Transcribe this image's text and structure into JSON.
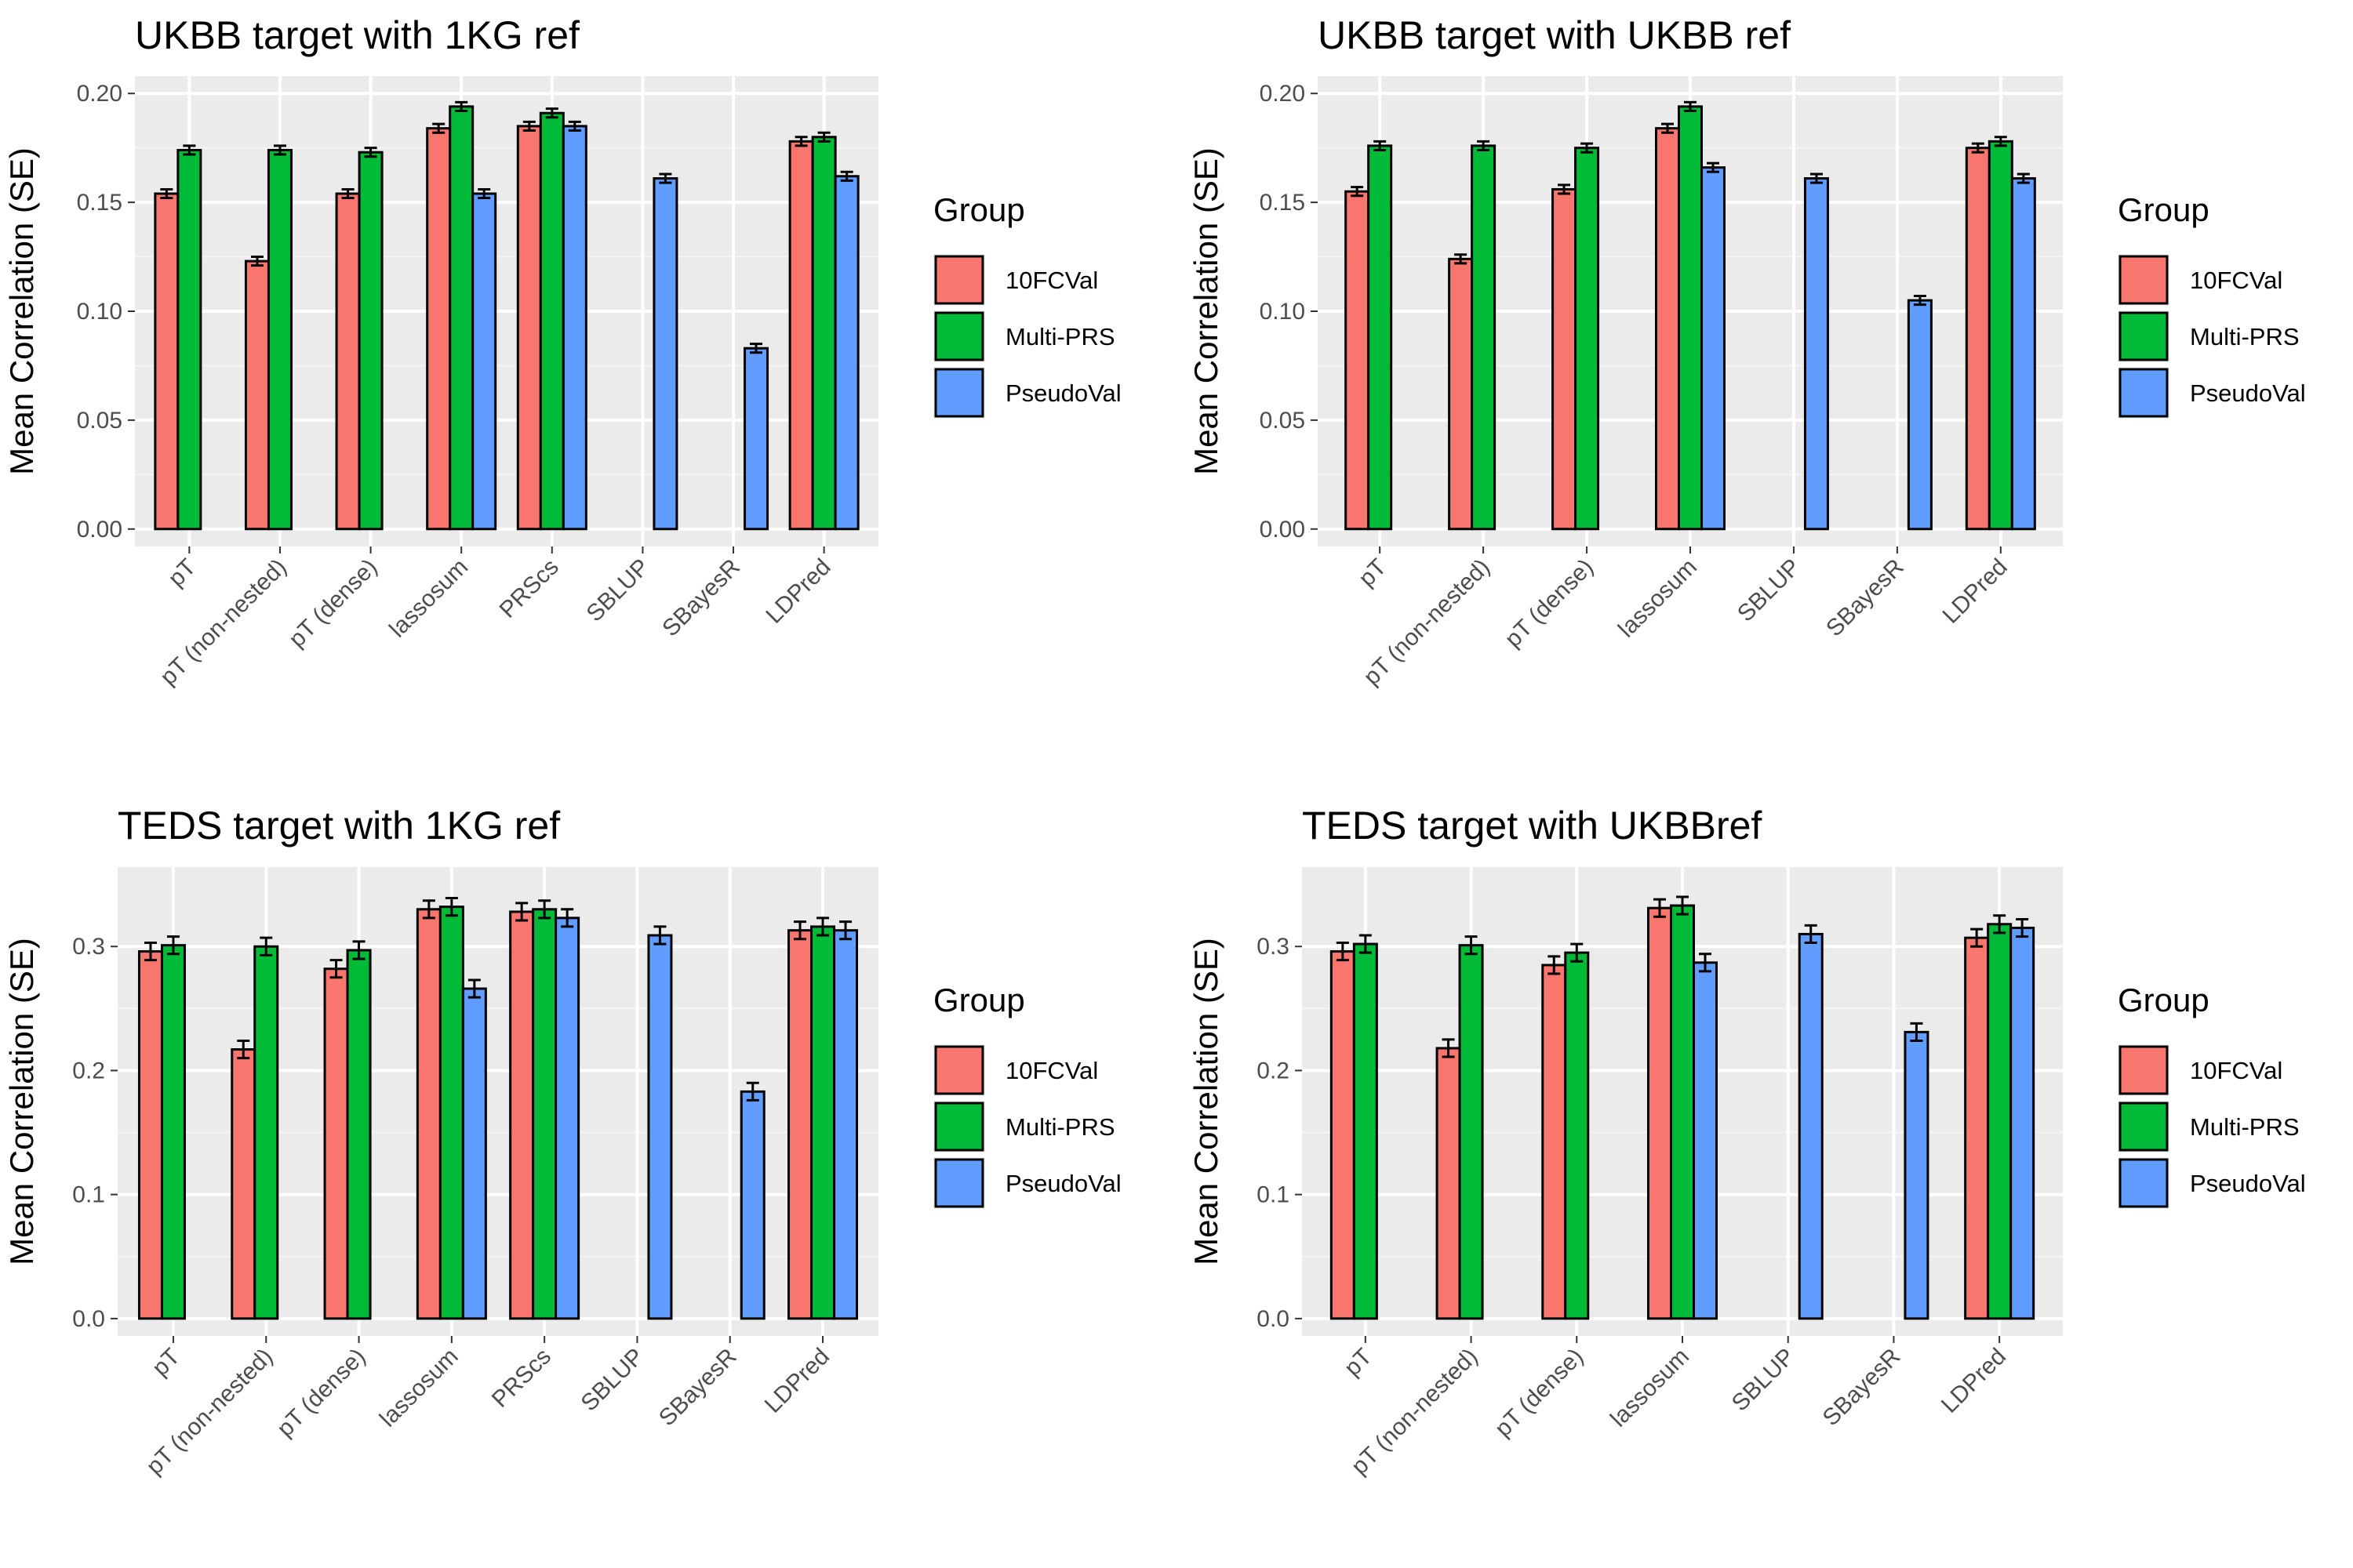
{
  "legend": {
    "title": "Group",
    "items": [
      {
        "label": "10FCVal",
        "color": "#F8766D"
      },
      {
        "label": "Multi-PRS",
        "color": "#00BA38"
      },
      {
        "label": "PseudoVal",
        "color": "#619CFF"
      }
    ]
  },
  "chart_data": [
    {
      "type": "bar",
      "title": "UKBB target with 1KG ref",
      "ylabel": "Mean Correlation (SE)",
      "ylim": [
        0,
        0.2
      ],
      "yticks": [
        0.0,
        0.05,
        0.1,
        0.15,
        0.2
      ],
      "ytick_labels": [
        "0.00",
        "0.05",
        "0.10",
        "0.15",
        "0.20"
      ],
      "categories": [
        "pT",
        "pT (non-nested)",
        "pT (dense)",
        "lassosum",
        "PRScs",
        "SBLUP",
        "SBayesR",
        "LDPred"
      ],
      "grid": true,
      "legend_position": "right",
      "series": [
        {
          "name": "10FCVal",
          "values": [
            0.154,
            0.123,
            0.154,
            0.184,
            0.185,
            null,
            null,
            0.178
          ],
          "se": [
            0.002,
            0.002,
            0.002,
            0.002,
            0.002,
            null,
            null,
            0.002
          ]
        },
        {
          "name": "Multi-PRS",
          "values": [
            0.174,
            0.174,
            0.173,
            0.194,
            0.191,
            null,
            null,
            0.18
          ],
          "se": [
            0.002,
            0.002,
            0.002,
            0.002,
            0.002,
            null,
            null,
            0.002
          ]
        },
        {
          "name": "PseudoVal",
          "values": [
            null,
            null,
            null,
            0.154,
            0.185,
            0.161,
            0.083,
            0.162
          ],
          "se": [
            null,
            null,
            null,
            0.002,
            0.002,
            0.002,
            0.002,
            0.002
          ]
        }
      ]
    },
    {
      "type": "bar",
      "title": "UKBB target with UKBB ref",
      "ylabel": "Mean Correlation (SE)",
      "ylim": [
        0,
        0.2
      ],
      "yticks": [
        0.0,
        0.05,
        0.1,
        0.15,
        0.2
      ],
      "ytick_labels": [
        "0.00",
        "0.05",
        "0.10",
        "0.15",
        "0.20"
      ],
      "categories": [
        "pT",
        "pT (non-nested)",
        "pT (dense)",
        "lassosum",
        "SBLUP",
        "SBayesR",
        "LDPred"
      ],
      "grid": true,
      "legend_position": "right",
      "series": [
        {
          "name": "10FCVal",
          "values": [
            0.155,
            0.124,
            0.156,
            0.184,
            null,
            null,
            0.175
          ],
          "se": [
            0.002,
            0.002,
            0.002,
            0.002,
            null,
            null,
            0.002
          ]
        },
        {
          "name": "Multi-PRS",
          "values": [
            0.176,
            0.176,
            0.175,
            0.194,
            null,
            null,
            0.178
          ],
          "se": [
            0.002,
            0.002,
            0.002,
            0.002,
            null,
            null,
            0.002
          ]
        },
        {
          "name": "PseudoVal",
          "values": [
            null,
            null,
            null,
            0.166,
            0.161,
            0.105,
            0.161
          ],
          "se": [
            null,
            null,
            null,
            0.002,
            0.002,
            0.002,
            0.002
          ]
        }
      ]
    },
    {
      "type": "bar",
      "title": "TEDS target with 1KG ref",
      "ylabel": "Mean Correlation (SE)",
      "ylim": [
        0,
        0.35
      ],
      "yticks": [
        0.0,
        0.1,
        0.2,
        0.3
      ],
      "ytick_labels": [
        "0.0",
        "0.1",
        "0.2",
        "0.3"
      ],
      "categories": [
        "pT",
        "pT (non-nested)",
        "pT (dense)",
        "lassosum",
        "PRScs",
        "SBLUP",
        "SBayesR",
        "LDPred"
      ],
      "grid": true,
      "legend_position": "right",
      "series": [
        {
          "name": "10FCVal",
          "values": [
            0.296,
            0.217,
            0.282,
            0.33,
            0.328,
            null,
            null,
            0.313
          ],
          "se": [
            0.007,
            0.007,
            0.007,
            0.007,
            0.007,
            null,
            null,
            0.007
          ]
        },
        {
          "name": "Multi-PRS",
          "values": [
            0.301,
            0.3,
            0.297,
            0.332,
            0.33,
            null,
            null,
            0.316
          ],
          "se": [
            0.007,
            0.007,
            0.007,
            0.007,
            0.007,
            null,
            null,
            0.007
          ]
        },
        {
          "name": "PseudoVal",
          "values": [
            null,
            null,
            null,
            0.266,
            0.323,
            0.309,
            0.183,
            0.313
          ],
          "se": [
            null,
            null,
            null,
            0.007,
            0.007,
            0.007,
            0.007,
            0.007
          ]
        }
      ]
    },
    {
      "type": "bar",
      "title": "TEDS target with UKBBref",
      "ylabel": "Mean Correlation (SE)",
      "ylim": [
        0,
        0.35
      ],
      "yticks": [
        0.0,
        0.1,
        0.2,
        0.3
      ],
      "ytick_labels": [
        "0.0",
        "0.1",
        "0.2",
        "0.3"
      ],
      "categories": [
        "pT",
        "pT (non-nested)",
        "pT (dense)",
        "lassosum",
        "SBLUP",
        "SBayesR",
        "LDPred"
      ],
      "grid": true,
      "legend_position": "right",
      "series": [
        {
          "name": "10FCVal",
          "values": [
            0.296,
            0.218,
            0.285,
            0.331,
            null,
            null,
            0.307
          ],
          "se": [
            0.007,
            0.007,
            0.007,
            0.007,
            null,
            null,
            0.007
          ]
        },
        {
          "name": "Multi-PRS",
          "values": [
            0.302,
            0.301,
            0.295,
            0.333,
            null,
            null,
            0.318
          ],
          "se": [
            0.007,
            0.007,
            0.007,
            0.007,
            null,
            null,
            0.007
          ]
        },
        {
          "name": "PseudoVal",
          "values": [
            null,
            null,
            null,
            0.287,
            0.31,
            0.231,
            0.315
          ],
          "se": [
            null,
            null,
            null,
            0.007,
            0.007,
            0.007,
            0.007
          ]
        }
      ]
    }
  ]
}
